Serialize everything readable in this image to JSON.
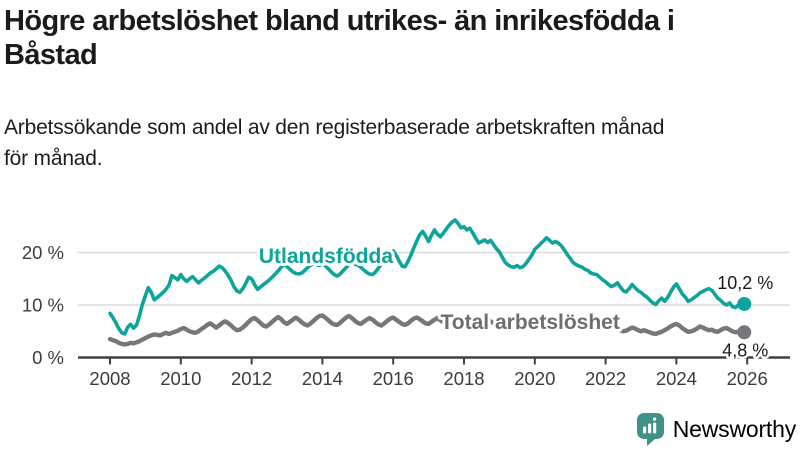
{
  "header": {
    "title_lines": [
      "Högre arbetslöshet bland utrikes- än inrikesfödda i",
      "Båstad"
    ],
    "subtitle_lines": [
      "Arbetssökande som andel av den registerbaserade arbetskraften månad",
      "för månad."
    ]
  },
  "footer": {
    "brand": "Newsworthy"
  },
  "colors": {
    "axis": "#414141",
    "grid": "#dcdcdc",
    "tick_text": "#3c3c3c",
    "end_label_text": "#1a1a1a",
    "brand_teal": "#3f9287"
  },
  "chart_data": {
    "type": "line",
    "title": "Högre arbetslöshet bland utrikes- än inrikesfödda i Båstad",
    "subtitle": "Arbetssökande som andel av den registerbaserade arbetskraften månad för månad.",
    "x_start_year": 2008,
    "points_per_year": 12,
    "xlim": [
      2008,
      2026.4
    ],
    "ylim": [
      0,
      27
    ],
    "grid": true,
    "x_ticks": [
      {
        "year": 2008,
        "label": "2008"
      },
      {
        "year": 2010,
        "label": "2010"
      },
      {
        "year": 2012,
        "label": "2012"
      },
      {
        "year": 2014,
        "label": "2014"
      },
      {
        "year": 2016,
        "label": "2016"
      },
      {
        "year": 2018,
        "label": "2018"
      },
      {
        "year": 2020,
        "label": "2020"
      },
      {
        "year": 2022,
        "label": "2022"
      },
      {
        "year": 2024,
        "label": "2024"
      },
      {
        "year": 2026,
        "label": "2026"
      }
    ],
    "y_ticks": [
      {
        "value": 20,
        "label": "20 %"
      },
      {
        "value": 10,
        "label": "10 %"
      },
      {
        "value": 0,
        "label": "0 %"
      }
    ],
    "series": [
      {
        "name": "Utlandsfödda",
        "color": "#0ea49a",
        "label_color": "#0ea49a",
        "line_width": 3.6,
        "end_label": "10,2 %",
        "end_value": 10.2,
        "end_label_dy": -21,
        "label_anchor": {
          "year": 2014.1,
          "pct": 19.3
        },
        "values": [
          8.4,
          7.6,
          6.6,
          5.5,
          4.7,
          4.5,
          5.8,
          6.3,
          5.6,
          6.2,
          8.0,
          10.2,
          11.8,
          13.3,
          12.4,
          11.0,
          11.4,
          11.9,
          12.4,
          13.0,
          13.8,
          15.6,
          15.2,
          14.8,
          15.8,
          15.0,
          14.5,
          15.0,
          15.4,
          14.8,
          14.2,
          14.7,
          15.1,
          15.6,
          16.1,
          16.4,
          16.9,
          17.4,
          17.1,
          16.5,
          15.7,
          14.7,
          13.5,
          12.7,
          12.4,
          13.1,
          14.1,
          15.3,
          15.0,
          13.9,
          13.0,
          13.4,
          13.9,
          14.3,
          14.8,
          15.3,
          15.9,
          16.5,
          17.2,
          17.7,
          17.3,
          16.8,
          16.3,
          16.0,
          15.9,
          16.1,
          16.6,
          17.1,
          17.6,
          17.9,
          17.7,
          17.5,
          17.9,
          17.5,
          16.9,
          16.3,
          15.8,
          15.5,
          15.9,
          16.5,
          17.1,
          17.7,
          18.0,
          17.8,
          17.6,
          17.2,
          16.7,
          16.2,
          15.9,
          15.8,
          16.3,
          17.0,
          17.9,
          18.8,
          19.5,
          20.0,
          20.3,
          19.5,
          18.4,
          17.4,
          17.3,
          18.3,
          19.5,
          20.9,
          22.2,
          23.4,
          24.0,
          23.1,
          22.1,
          23.3,
          24.3,
          23.5,
          23.0,
          23.7,
          24.5,
          25.2,
          25.8,
          26.2,
          25.5,
          24.7,
          24.9,
          24.3,
          24.6,
          23.7,
          22.7,
          21.8,
          22.1,
          22.4,
          21.9,
          22.3,
          21.5,
          20.7,
          20.1,
          19.1,
          18.1,
          17.6,
          17.3,
          17.2,
          17.5,
          17.1,
          17.3,
          17.9,
          18.7,
          19.5,
          20.6,
          21.1,
          21.7,
          22.2,
          22.8,
          22.3,
          21.8,
          22.1,
          21.8,
          21.3,
          20.5,
          19.6,
          18.9,
          18.1,
          17.7,
          17.4,
          17.2,
          16.8,
          16.6,
          16.1,
          15.9,
          15.8,
          15.3,
          14.8,
          14.4,
          13.9,
          13.5,
          13.8,
          14.2,
          13.4,
          12.7,
          12.5,
          13.1,
          13.9,
          13.3,
          12.7,
          12.4,
          11.9,
          11.5,
          10.9,
          10.4,
          10.1,
          10.8,
          11.3,
          10.7,
          11.4,
          12.4,
          13.4,
          14.0,
          13.1,
          12.1,
          11.5,
          10.7,
          11.0,
          11.4,
          11.8,
          12.3,
          12.6,
          12.9,
          13.1,
          12.8,
          12.1,
          11.3,
          10.9,
          10.3,
          10.0,
          10.4,
          9.7,
          9.5,
          10.0,
          9.8,
          10.2
        ]
      },
      {
        "name": "Total arbetslöshet",
        "color": "#77777b",
        "label_color": "#6e6e72",
        "line_width": 4.4,
        "end_label": "4,8 %",
        "end_value": 4.8,
        "end_label_dy": 18,
        "label_anchor": {
          "year": 2019.87,
          "pct": 6.75
        },
        "values": [
          3.5,
          3.3,
          3.1,
          2.8,
          2.6,
          2.5,
          2.6,
          2.8,
          2.7,
          2.9,
          3.1,
          3.4,
          3.7,
          4.0,
          4.2,
          4.4,
          4.3,
          4.2,
          4.5,
          4.7,
          4.5,
          4.7,
          4.9,
          5.1,
          5.4,
          5.6,
          5.3,
          5.0,
          4.8,
          4.7,
          5.0,
          5.4,
          5.8,
          6.2,
          6.5,
          6.1,
          5.7,
          6.1,
          6.6,
          6.9,
          6.6,
          6.1,
          5.6,
          5.2,
          5.3,
          5.7,
          6.2,
          6.8,
          7.3,
          7.5,
          7.1,
          6.6,
          6.1,
          5.9,
          6.3,
          6.8,
          7.3,
          7.7,
          7.3,
          6.7,
          6.4,
          6.8,
          7.2,
          7.6,
          7.2,
          6.7,
          6.3,
          6.1,
          6.5,
          7.0,
          7.5,
          7.9,
          8.0,
          7.6,
          7.1,
          6.6,
          6.3,
          6.2,
          6.6,
          7.1,
          7.6,
          7.9,
          7.5,
          7.0,
          6.6,
          6.4,
          6.8,
          7.2,
          7.5,
          7.2,
          6.7,
          6.3,
          6.1,
          6.5,
          7.0,
          7.4,
          7.6,
          7.2,
          6.8,
          6.4,
          6.2,
          6.5,
          7.0,
          7.4,
          7.6,
          7.3,
          6.9,
          6.5,
          6.4,
          6.8,
          7.2,
          7.5,
          7.1,
          6.7,
          6.4,
          6.6,
          7.0,
          7.4,
          7.1,
          6.7,
          6.3,
          6.6,
          6.9,
          7.1,
          6.8,
          6.4,
          6.0,
          6.2,
          6.6,
          6.9,
          6.6,
          6.2,
          5.9,
          6.2,
          6.5,
          6.7,
          6.4,
          6.0,
          5.8,
          5.7,
          6.0,
          6.3,
          6.5,
          6.2,
          6.2,
          6.6,
          7.0,
          7.4,
          7.6,
          7.2,
          6.8,
          6.6,
          6.8,
          7.1,
          7.2,
          6.9,
          6.6,
          6.9,
          7.1,
          6.9,
          6.5,
          6.1,
          5.9,
          5.8,
          6.0,
          6.2,
          6.0,
          5.8,
          5.6,
          5.9,
          6.1,
          5.9,
          5.6,
          5.2,
          5.0,
          5.1,
          5.4,
          5.7,
          5.5,
          5.2,
          5.0,
          5.2,
          5.0,
          4.8,
          4.6,
          4.5,
          4.7,
          4.9,
          5.2,
          5.5,
          5.9,
          6.2,
          6.4,
          6.1,
          5.6,
          5.2,
          4.9,
          5.0,
          5.2,
          5.5,
          5.9,
          5.7,
          5.4,
          5.2,
          5.3,
          5.0,
          4.9,
          5.2,
          5.5,
          5.6,
          5.3,
          5.0,
          4.8,
          4.9,
          4.8,
          4.8
        ]
      }
    ]
  }
}
